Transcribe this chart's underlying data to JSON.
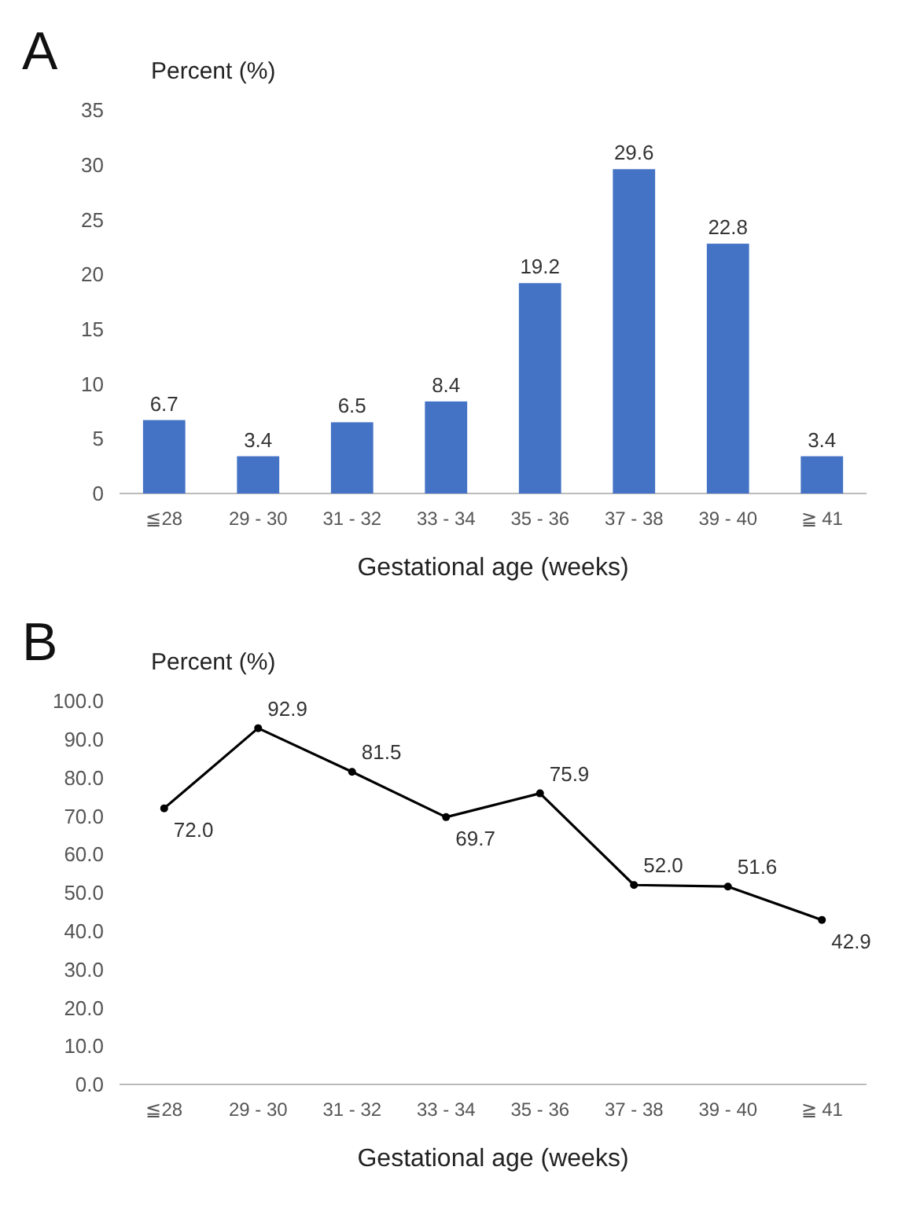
{
  "chart_data": [
    {
      "type": "bar",
      "title": "A",
      "ylabel": "Percent (%)",
      "xlabel": "Gestational age (weeks)",
      "categories": [
        "≦28",
        "29 - 30",
        "31 - 32",
        "33 - 34",
        "35 - 36",
        "37 - 38",
        "39 - 40",
        "≧ 41"
      ],
      "values": [
        6.7,
        3.4,
        6.5,
        8.4,
        19.2,
        29.6,
        22.8,
        3.4
      ],
      "color": "#4472c4",
      "ylim": [
        0,
        35
      ],
      "yticks": [
        0,
        5,
        10,
        15,
        20,
        25,
        30,
        35
      ],
      "data_labels": true,
      "grid": false
    },
    {
      "type": "line",
      "title": "B",
      "ylabel": "Percent (%)",
      "xlabel": "Gestational age (weeks)",
      "categories": [
        "≦28",
        "29 - 30",
        "31 - 32",
        "33 - 34",
        "35 - 36",
        "37 - 38",
        "39 - 40",
        "≧ 41"
      ],
      "series": [
        {
          "color": "#000000",
          "values": [
            72.0,
            92.9,
            81.5,
            69.7,
            75.9,
            52.0,
            51.6,
            42.9
          ],
          "value_labels": [
            "72.0",
            "92.9",
            "81.5",
            "69.7",
            "75.9",
            "52.0",
            "51.6",
            "42.9"
          ]
        }
      ],
      "marker": "circle",
      "ylim": [
        0,
        100
      ],
      "yticks": [
        {
          "value": 0,
          "label": "0.0"
        },
        {
          "value": 10,
          "label": "10.0"
        },
        {
          "value": 20,
          "label": "20.0"
        },
        {
          "value": 30,
          "label": "30.0"
        },
        {
          "value": 40,
          "label": "40.0"
        },
        {
          "value": 50,
          "label": "50.0"
        },
        {
          "value": 60,
          "label": "60.0"
        },
        {
          "value": 70,
          "label": "70.0"
        },
        {
          "value": 80,
          "label": "80.0"
        },
        {
          "value": 90,
          "label": "90.0"
        },
        {
          "value": 100,
          "label": "100.0"
        }
      ],
      "grid": false
    }
  ]
}
